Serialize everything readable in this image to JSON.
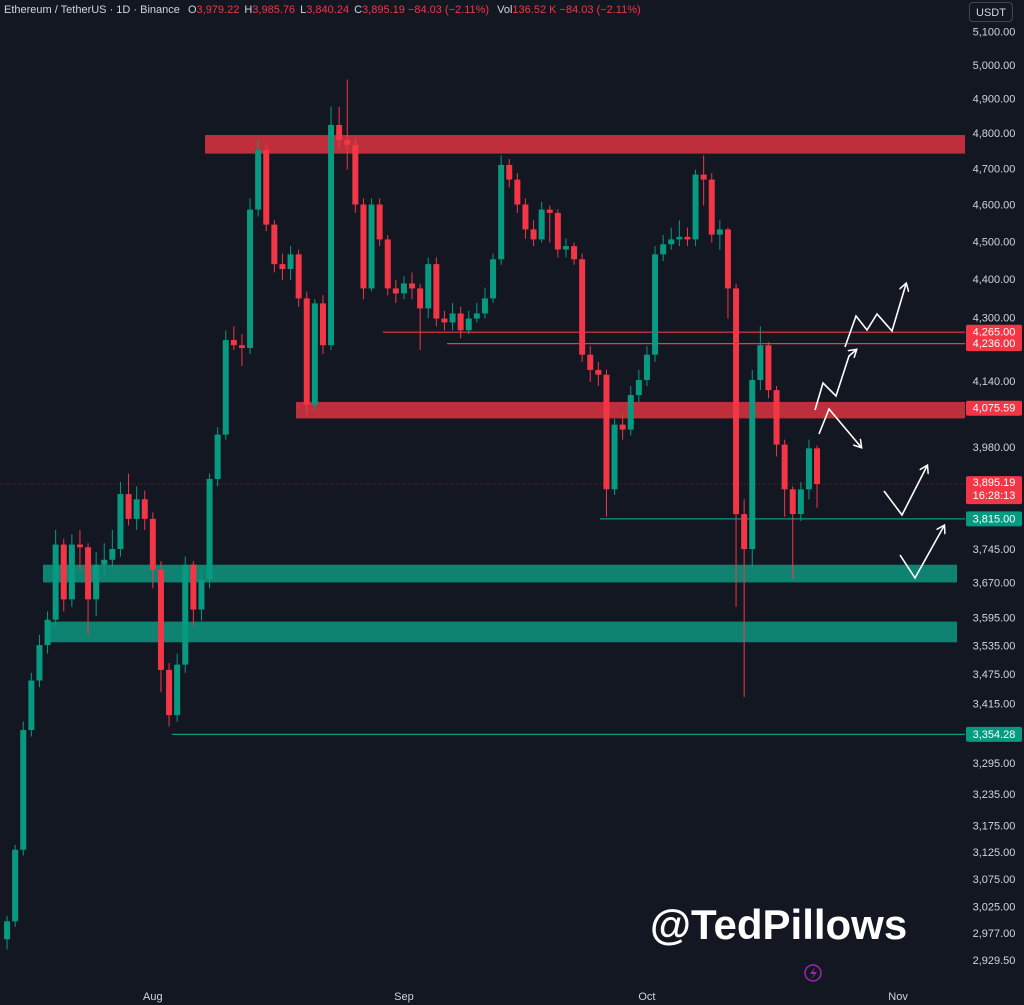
{
  "chart_data": {
    "type": "candlestick",
    "legend": {
      "symbol": "Ethereum / TetherUS · 1D · Binance",
      "items": [
        {
          "key": "O",
          "value": "3,979.22"
        },
        {
          "key": "H",
          "value": "3,985.76"
        },
        {
          "key": "L",
          "value": "3,840.24"
        },
        {
          "key": "C",
          "value": "3,895.19"
        }
      ],
      "change": "−84.03 (−2.11%)",
      "vol_key": "Vol",
      "vol": "136.52 K",
      "vol_change": "−84.03 (−2.11%)"
    },
    "currency": "USDT",
    "watermark": "@TedPillows",
    "up_color": "#089981",
    "down_color": "#f23645",
    "categories": [
      null,
      null,
      null,
      null,
      null,
      null,
      null,
      null,
      null,
      null,
      null,
      null,
      null,
      null,
      null,
      null,
      null,
      null,
      "Aug",
      null,
      null,
      null,
      null,
      null,
      null,
      null,
      null,
      null,
      null,
      null,
      null,
      null,
      null,
      null,
      null,
      null,
      null,
      null,
      null,
      null,
      null,
      null,
      null,
      null,
      null,
      null,
      null,
      null,
      null,
      "Sep",
      null,
      null,
      null,
      null,
      null,
      null,
      null,
      null,
      null,
      null,
      null,
      null,
      null,
      null,
      null,
      null,
      null,
      null,
      null,
      null,
      null,
      null,
      null,
      null,
      null,
      null,
      null,
      null,
      null,
      "Oct",
      null,
      null,
      null,
      null,
      null,
      null,
      null,
      null,
      null,
      null,
      null,
      null,
      null,
      null,
      null,
      null,
      null,
      null,
      null,
      null,
      null,
      null,
      null,
      null,
      null,
      null,
      null,
      null,
      null,
      null,
      "Nov",
      null,
      null,
      null,
      null,
      null,
      null,
      null
    ],
    "open": [
      2968,
      3000,
      3131,
      3363,
      3464,
      3538,
      3592,
      3757,
      3636,
      3757,
      3751,
      3636,
      3712,
      3723,
      3747,
      3872,
      3815,
      3860,
      3815,
      3701,
      3486,
      3393,
      3497,
      3712,
      3614,
      3679,
      3907,
      4012,
      4245,
      4232,
      4225,
      4589,
      4755,
      4548,
      4442,
      4429,
      4468,
      4352,
      4084,
      4339,
      4232,
      4827,
      4784,
      4770,
      4603,
      4378,
      4603,
      4508,
      4378,
      4365,
      4391,
      4378,
      4326,
      4442,
      4300,
      4290,
      4313,
      4270,
      4300,
      4313,
      4352,
      4455,
      4713,
      4672,
      4603,
      4535,
      4508,
      4589,
      4580,
      4481,
      4490,
      4455,
      4208,
      4170,
      4158,
      3883,
      4036,
      4024,
      4108,
      4145,
      4208,
      4468,
      4495,
      4508,
      4515,
      4508,
      4686,
      4672,
      4521,
      4535,
      4378,
      3826,
      3747,
      4145,
      4232,
      4120,
      3988,
      3883,
      3826,
      3883,
      3979.22,
      null,
      null,
      null,
      null,
      null,
      null,
      null,
      null,
      null,
      null,
      null,
      null,
      null,
      null,
      null,
      null,
      null
    ],
    "high": [
      3010,
      3140,
      3380,
      3480,
      3560,
      3610,
      3790,
      3770,
      3780,
      3790,
      3760,
      3740,
      3760,
      3790,
      3900,
      3920,
      3890,
      3880,
      3830,
      3720,
      3500,
      3520,
      3730,
      3720,
      3700,
      3920,
      4030,
      4270,
      4280,
      4260,
      4620,
      4784,
      4770,
      4560,
      4470,
      4490,
      4480,
      4370,
      4350,
      4360,
      4880,
      4880,
      4960,
      4790,
      4620,
      4620,
      4620,
      4520,
      4400,
      4410,
      4420,
      4390,
      4460,
      4460,
      4320,
      4340,
      4330,
      4320,
      4340,
      4380,
      4470,
      4740,
      4730,
      4690,
      4620,
      4560,
      4610,
      4600,
      4590,
      4510,
      4500,
      4470,
      4230,
      4190,
      4170,
      4050,
      4060,
      4130,
      4170,
      4230,
      4490,
      4520,
      4540,
      4560,
      4540,
      4700,
      4740,
      4690,
      4560,
      4540,
      4390,
      3860,
      4170,
      4280,
      4240,
      4130,
      4000,
      3890,
      3900,
      4000,
      3985.76,
      null,
      null,
      null,
      null,
      null,
      null,
      null,
      null,
      null,
      null,
      null,
      null,
      null,
      null,
      null,
      null,
      null
    ],
    "low": [
      2950,
      2990,
      3120,
      3350,
      3450,
      3520,
      3580,
      3610,
      3620,
      3700,
      3560,
      3600,
      3690,
      3700,
      3730,
      3800,
      3790,
      3790,
      3660,
      3440,
      3370,
      3380,
      3480,
      3580,
      3590,
      3660,
      3890,
      4000,
      4220,
      4180,
      4210,
      4570,
      4530,
      4420,
      4400,
      4400,
      4330,
      4060,
      4070,
      4210,
      4220,
      4760,
      4700,
      4580,
      4350,
      4370,
      4490,
      4360,
      4340,
      4350,
      4350,
      4220,
      4300,
      4280,
      4270,
      4270,
      4250,
      4260,
      4290,
      4300,
      4340,
      4440,
      4650,
      4580,
      4510,
      4490,
      4500,
      4500,
      4460,
      4460,
      4440,
      4190,
      4140,
      4130,
      3820,
      3870,
      4000,
      4010,
      4090,
      4130,
      4190,
      4450,
      4480,
      4490,
      4490,
      4490,
      4600,
      4500,
      4480,
      4300,
      3620,
      3430,
      3700,
      4120,
      4100,
      3960,
      3820,
      3680,
      3810,
      3860,
      3840.24,
      null,
      null,
      null,
      null,
      null,
      null,
      null,
      null,
      null,
      null,
      null,
      null,
      null,
      null,
      null,
      null,
      null
    ],
    "close": [
      3000,
      3131,
      3363,
      3464,
      3538,
      3592,
      3757,
      3636,
      3757,
      3751,
      3636,
      3712,
      3723,
      3747,
      3872,
      3815,
      3860,
      3815,
      3701,
      3486,
      3393,
      3497,
      3712,
      3614,
      3679,
      3907,
      4012,
      4245,
      4232,
      4225,
      4589,
      4755,
      4548,
      4442,
      4429,
      4468,
      4352,
      4084,
      4339,
      4232,
      4827,
      4784,
      4770,
      4603,
      4378,
      4603,
      4508,
      4378,
      4365,
      4391,
      4378,
      4326,
      4442,
      4300,
      4290,
      4313,
      4270,
      4300,
      4313,
      4352,
      4455,
      4713,
      4672,
      4603,
      4535,
      4508,
      4589,
      4580,
      4481,
      4490,
      4455,
      4208,
      4170,
      4158,
      3883,
      4036,
      4024,
      4108,
      4145,
      4208,
      4468,
      4495,
      4508,
      4515,
      4508,
      4686,
      4672,
      4521,
      4535,
      4378,
      3826,
      3747,
      4145,
      4232,
      4120,
      3988,
      3883,
      3826,
      3883,
      3979.22,
      3895.19,
      null,
      null,
      null,
      null,
      null,
      null,
      null,
      null,
      null,
      null,
      null,
      null,
      null,
      null,
      null,
      null,
      null
    ],
    "log_scale": true,
    "grid": false,
    "ylim": [
      2888,
      5201
    ],
    "yticks": [
      {
        "value": 5100,
        "label": "5,100.00"
      },
      {
        "value": 5000,
        "label": "5,000.00"
      },
      {
        "value": 4900,
        "label": "4,900.00"
      },
      {
        "value": 4800,
        "label": "4,800.00"
      },
      {
        "value": 4700,
        "label": "4,700.00"
      },
      {
        "value": 4600,
        "label": "4,600.00"
      },
      {
        "value": 4500,
        "label": "4,500.00"
      },
      {
        "value": 4400,
        "label": "4,400.00"
      },
      {
        "value": 4300,
        "label": "4,300.00"
      },
      {
        "value": 4140,
        "label": "4,140.00"
      },
      {
        "value": 3980,
        "label": "3,980.00"
      },
      {
        "value": 3745,
        "label": "3,745.00"
      },
      {
        "value": 3670,
        "label": "3,670.00"
      },
      {
        "value": 3595,
        "label": "3,595.00"
      },
      {
        "value": 3535,
        "label": "3,535.00"
      },
      {
        "value": 3475,
        "label": "3,475.00"
      },
      {
        "value": 3415,
        "label": "3,415.00"
      },
      {
        "value": 3295,
        "label": "3,295.00"
      },
      {
        "value": 3235,
        "label": "3,235.00"
      },
      {
        "value": 3175,
        "label": "3,175.00"
      },
      {
        "value": 3125,
        "label": "3,125.00"
      },
      {
        "value": 3075,
        "label": "3,075.00"
      },
      {
        "value": 3025,
        "label": "3,025.00"
      },
      {
        "value": 2977,
        "label": "2,977.00"
      },
      {
        "value": 2929.5,
        "label": "2,929.50"
      }
    ],
    "zones": [
      {
        "low": 4745,
        "high": 4798,
        "color": "#d1323e"
      },
      {
        "low": 4051,
        "high": 4091,
        "color": "#d1323e"
      },
      {
        "low": 3673,
        "high": 3712,
        "color": "#0f8f7a"
      },
      {
        "low": 3544,
        "high": 3588,
        "color": "#0f8f7a"
      }
    ],
    "price_lines": [
      {
        "value": 4265,
        "label": "4,265.00",
        "color": "#f23645"
      },
      {
        "value": 4236,
        "label": "4,236.00",
        "color": "#f23645"
      },
      {
        "value": 4075.59,
        "label": "4,075.59",
        "color": "#f23645"
      },
      {
        "value": 3815,
        "label": "3,815.00",
        "color": "#089981"
      },
      {
        "value": 3354.28,
        "label": "3,354.28",
        "color": "#089981"
      }
    ],
    "last_price": {
      "value": 3895.19,
      "label": "3,895.19",
      "countdown": "16:28:13",
      "color": "#f23645"
    }
  }
}
